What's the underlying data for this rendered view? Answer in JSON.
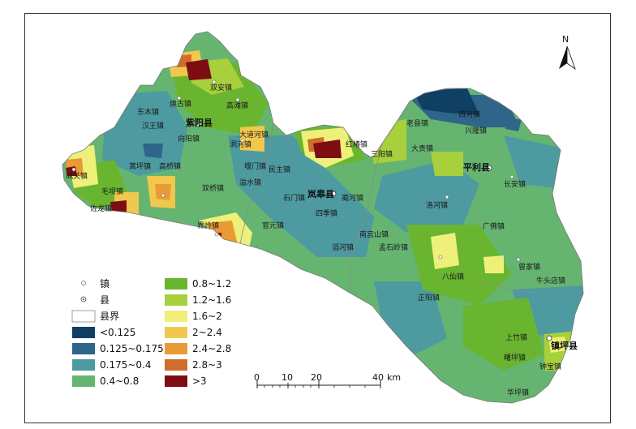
{
  "north_label": "N",
  "colors": {
    "lt_0125": "#0f3f62",
    "r_0125_0175": "#2e6589",
    "r_0175_04": "#4d9aa0",
    "r_04_08": "#65b571",
    "r_08_12": "#6ab530",
    "r_12_16": "#a8cf3c",
    "r_16_2": "#eef07a",
    "r_2_24": "#f0c84d",
    "r_24_28": "#e99a35",
    "r_28_3": "#cf6d2a",
    "gt_3": "#7d0d13",
    "boundary": "#8a8a8a"
  },
  "legend": {
    "town": "镇",
    "county_seat": "县",
    "county_boundary": "县界",
    "classes": [
      "<0.125",
      "0.125~0.175",
      "0.175~0.4",
      "0.4~0.8",
      "0.8~1.2",
      "1.2~1.6",
      "1.6~2",
      "2~2.4",
      "2.4~2.8",
      "2.8~3",
      ">3"
    ]
  },
  "scale": {
    "ticks": [
      "0",
      "10",
      "20",
      "40"
    ],
    "unit": "km"
  },
  "counties": [
    "紫阳县",
    "岚皋县",
    "平利县",
    "镇坪县"
  ],
  "towns": [
    "双安镇",
    "焕古镇",
    "高滩镇",
    "东木镇",
    "汉王镇",
    "向阳镇",
    "洞河镇",
    "红椿镇",
    "高桥镇",
    "毛坝镇",
    "蒿坪镇",
    "双桥镇",
    "界岭镇",
    "官元镇",
    "城关镇",
    "佐龙镇",
    "大道河镇",
    "石门镇",
    "堰门镇",
    "溢水镇",
    "民主镇",
    "四季镇",
    "蔺河镇",
    "南宫山镇",
    "滔河镇",
    "孟石岭镇",
    "三阳镇",
    "大贵镇",
    "洛河镇",
    "长安镇",
    "广佛镇",
    "八仙镇",
    "西河镇",
    "老县镇",
    "兴隆镇",
    "正阳镇",
    "曾家镇",
    "牛头店镇",
    "上竹镇",
    "曙坪镇",
    "钟宝镇",
    "华坪镇"
  ]
}
